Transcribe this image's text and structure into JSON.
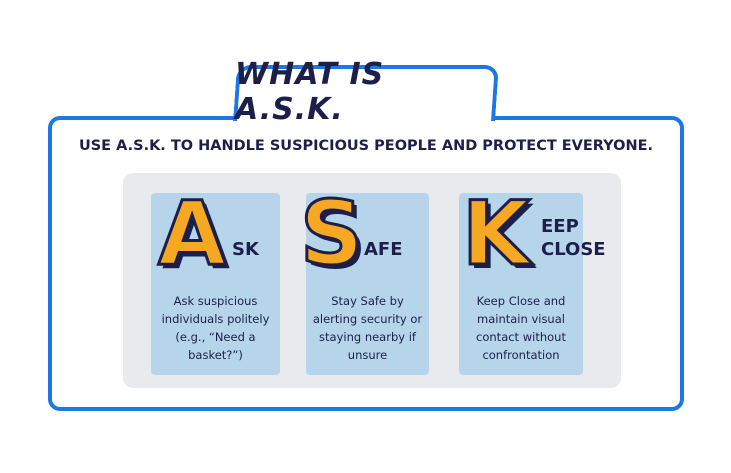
{
  "title": "WHAT IS A.S.K.",
  "subtitle": "USE A.S.K. TO HANDLE SUSPICIOUS PEOPLE AND PROTECT EVERYONE.",
  "colors": {
    "border": "#1d78e6",
    "navy": "#1b1f4a",
    "orange": "#f7a823",
    "column_bg": "#b7d5ea",
    "panel_bg": "#e9eaee"
  },
  "items": [
    {
      "letter": "A",
      "rest": "SK",
      "description": [
        "Ask suspicious",
        "individuals politely",
        "(e.g., “Need a",
        "basket?”)"
      ]
    },
    {
      "letter": "S",
      "rest": "AFE",
      "description": [
        "Stay Safe by",
        "alerting security or",
        "staying nearby if",
        "unsure"
      ]
    },
    {
      "letter": "K",
      "rest_lines": [
        "EEP",
        "CLOSE"
      ],
      "description": [
        "Keep Close and",
        "maintain visual",
        "contact without",
        "confrontation"
      ]
    }
  ]
}
